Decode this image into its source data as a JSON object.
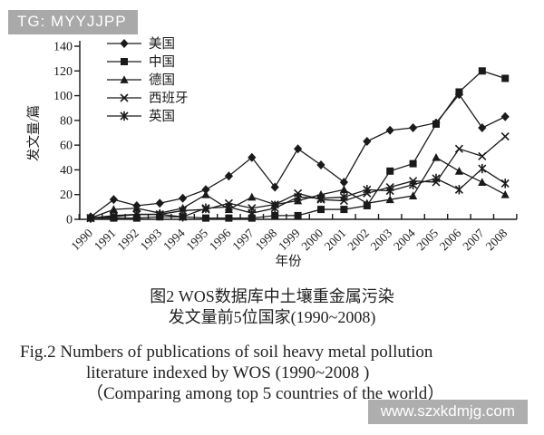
{
  "header": {
    "tag": "TG: MYYJJPP"
  },
  "watermark": {
    "site_text": "www.szxkdmjg.com"
  },
  "caption": {
    "zh_line1": "图2  WOS数据库中土壤重金属污染",
    "zh_line2": "发文量前5位国家(1990~2008)",
    "en_line1": "Fig.2  Numbers of publications of soil heavy metal pollution",
    "en_line2": "literature indexed by WOS (1990~2008 )",
    "en_line3": "（Comparing among top 5 countries of the world）"
  },
  "colors": {
    "ink": "#1a1a1a",
    "badge_bg": "#a9a9a9",
    "badge_text": "#ffffff",
    "background": "#ffffff"
  },
  "chart_data": {
    "type": "line",
    "title": "",
    "xlabel": "年份",
    "ylabel": "发文量/篇",
    "ylim": [
      0,
      140
    ],
    "ytick_step": 20,
    "grid": false,
    "legend_position": "top-left-inside",
    "categories": [
      "1990",
      "1991",
      "1992",
      "1993",
      "1994",
      "1995",
      "1996",
      "1997",
      "1998",
      "1999",
      "2000",
      "2001",
      "2002",
      "2003",
      "2004",
      "2005",
      "2006",
      "2007",
      "2008"
    ],
    "series": [
      {
        "name": "美国",
        "marker": "diamond",
        "values": [
          2,
          16,
          11,
          13,
          17,
          24,
          35,
          50,
          26,
          57,
          44,
          30,
          63,
          72,
          74,
          78,
          101,
          74,
          83
        ]
      },
      {
        "name": "中国",
        "marker": "square",
        "values": [
          1,
          1,
          1,
          2,
          2,
          1,
          1,
          1,
          3,
          3,
          8,
          8,
          11,
          39,
          45,
          77,
          103,
          120,
          114
        ]
      },
      {
        "name": "德国",
        "marker": "triangle",
        "values": [
          1,
          8,
          9,
          5,
          9,
          20,
          8,
          18,
          12,
          15,
          20,
          24,
          13,
          16,
          19,
          50,
          39,
          30,
          20
        ]
      },
      {
        "name": "西班牙",
        "marker": "x",
        "values": [
          1,
          2,
          4,
          4,
          7,
          8,
          13,
          9,
          12,
          21,
          16,
          15,
          21,
          26,
          31,
          30,
          57,
          51,
          67
        ]
      },
      {
        "name": "英国",
        "marker": "asterisk",
        "values": [
          1,
          3,
          4,
          4,
          2,
          9,
          10,
          5,
          9,
          18,
          17,
          18,
          24,
          23,
          28,
          33,
          24,
          41,
          29
        ]
      }
    ]
  }
}
